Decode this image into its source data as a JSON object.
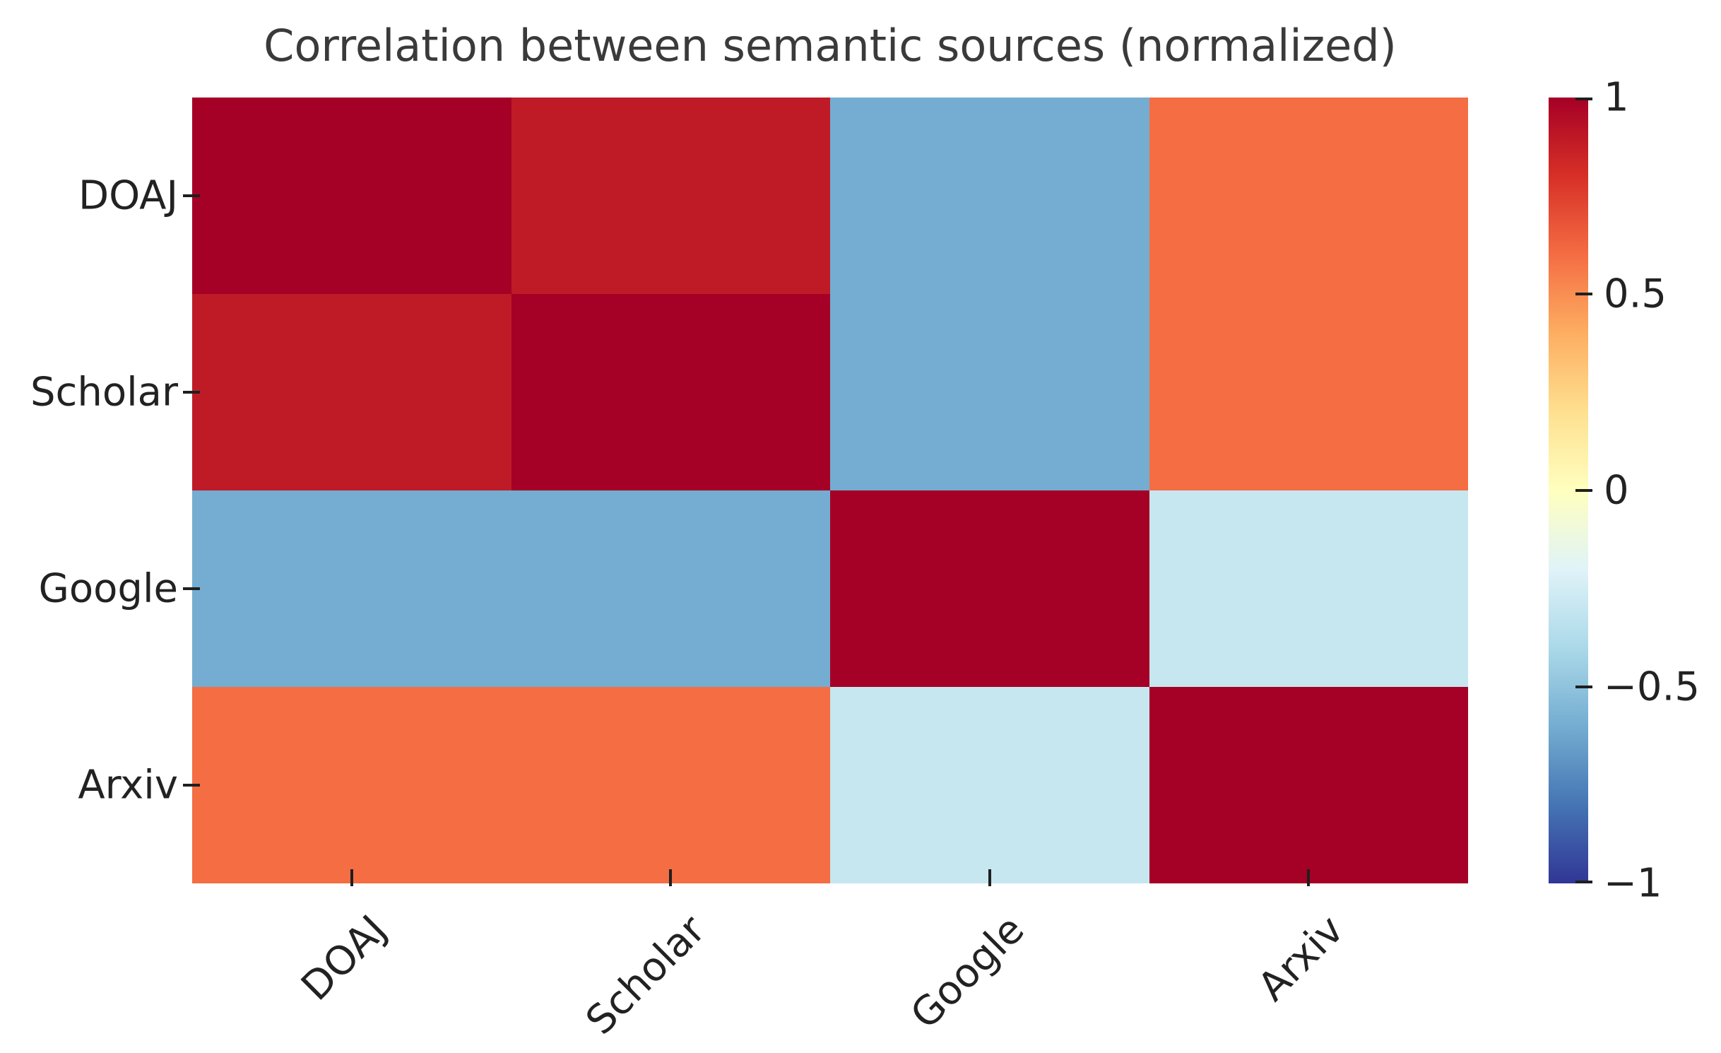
{
  "figure": {
    "title": "Correlation between semantic sources (normalized)",
    "background_color": "#ffffff",
    "title_color": "#3a3a3a",
    "tick_label_color": "#222222"
  },
  "chart_data": {
    "type": "heatmap",
    "title": "Correlation between semantic sources (normalized)",
    "categories": [
      "DOAJ",
      "Scholar",
      "Google",
      "Arxiv"
    ],
    "x_tick_labels": [
      "DOAJ",
      "Scholar",
      "Google",
      "Arxiv"
    ],
    "y_tick_labels": [
      "DOAJ",
      "Scholar",
      "Google",
      "Arxiv"
    ],
    "matrix": [
      [
        1.0,
        0.9,
        -0.6,
        0.6
      ],
      [
        0.9,
        1.0,
        -0.6,
        0.6
      ],
      [
        -0.6,
        -0.6,
        1.0,
        -0.3
      ],
      [
        0.6,
        0.6,
        -0.3,
        1.0
      ]
    ],
    "cell_colors": [
      [
        "#a50026",
        "#bf1b27",
        "#74add1",
        "#f46d43"
      ],
      [
        "#bf1b27",
        "#a50026",
        "#74add1",
        "#f46d43"
      ],
      [
        "#74add1",
        "#74add1",
        "#a50026",
        "#c6e6f0"
      ],
      [
        "#f46d43",
        "#f46d43",
        "#c6e6f0",
        "#a50026"
      ]
    ],
    "vmin": -1,
    "vmax": 1,
    "colormap": "RdYlBu_r",
    "grid": false,
    "legend_position": "none",
    "colorbar": {
      "position": "right",
      "ticks": [
        {
          "value": 1,
          "label": "1"
        },
        {
          "value": 0.5,
          "label": "0.5"
        },
        {
          "value": 0,
          "label": "0"
        },
        {
          "value": -0.5,
          "label": "−0.5"
        },
        {
          "value": -1,
          "label": "−1"
        }
      ],
      "gradient_stops_top_to_bottom": [
        "#a50026",
        "#d73027",
        "#f46d43",
        "#fdae61",
        "#fee090",
        "#ffffbf",
        "#e0f3f8",
        "#abd9e9",
        "#74add1",
        "#4575b4",
        "#313695"
      ]
    }
  }
}
